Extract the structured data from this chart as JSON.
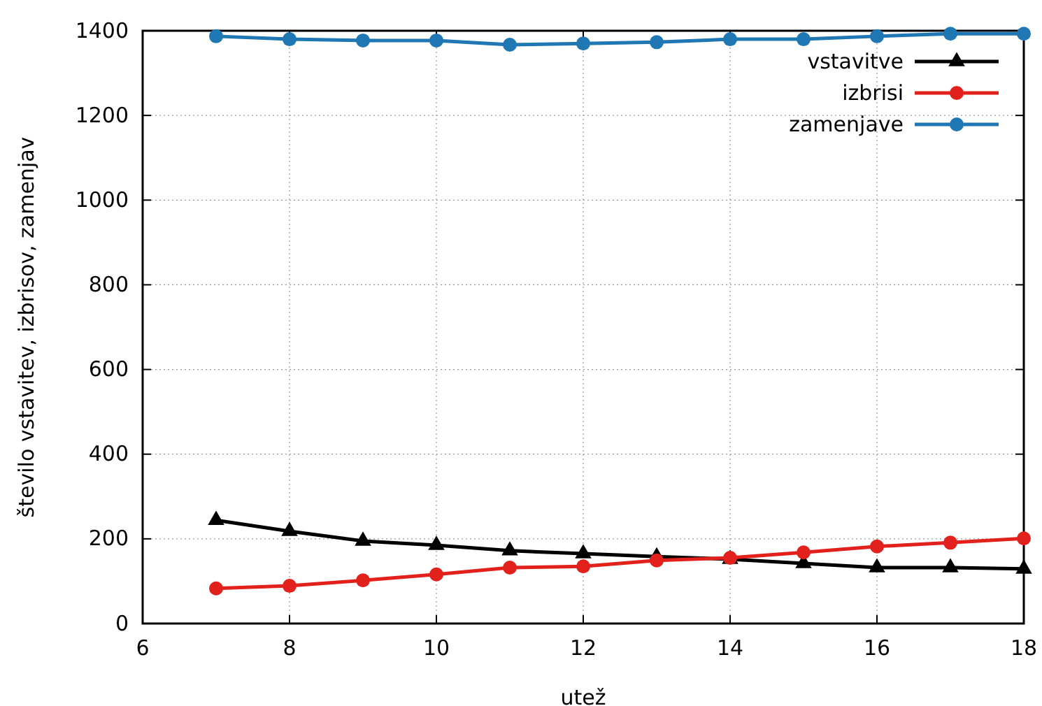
{
  "chart_data": {
    "type": "line",
    "xlabel": "utež",
    "ylabel": "število vstavitev, izbrisov, zamenjav",
    "x": [
      7,
      8,
      9,
      10,
      11,
      12,
      13,
      14,
      15,
      16,
      17,
      18
    ],
    "xlim": [
      6,
      18
    ],
    "xticks": [
      6,
      8,
      10,
      12,
      14,
      16,
      18
    ],
    "ylim": [
      0,
      1400
    ],
    "yticks": [
      0,
      200,
      400,
      600,
      800,
      1000,
      1200,
      1400
    ],
    "grid": true,
    "legend": "top right",
    "series": [
      {
        "name": "vstavitve",
        "color": "#000000",
        "marker": "triangle",
        "values": [
          244,
          218,
          195,
          185,
          172,
          165,
          158,
          152,
          142,
          132,
          132,
          129
        ]
      },
      {
        "name": "izbrisi",
        "color": "#e3211c",
        "marker": "circle",
        "values": [
          83,
          89,
          102,
          116,
          132,
          135,
          149,
          155,
          168,
          182,
          191,
          201
        ]
      },
      {
        "name": "zamenjave",
        "color": "#1f77b4",
        "marker": "circle",
        "values": [
          1387,
          1380,
          1377,
          1377,
          1367,
          1370,
          1373,
          1380,
          1380,
          1387,
          1393,
          1393
        ]
      }
    ]
  }
}
